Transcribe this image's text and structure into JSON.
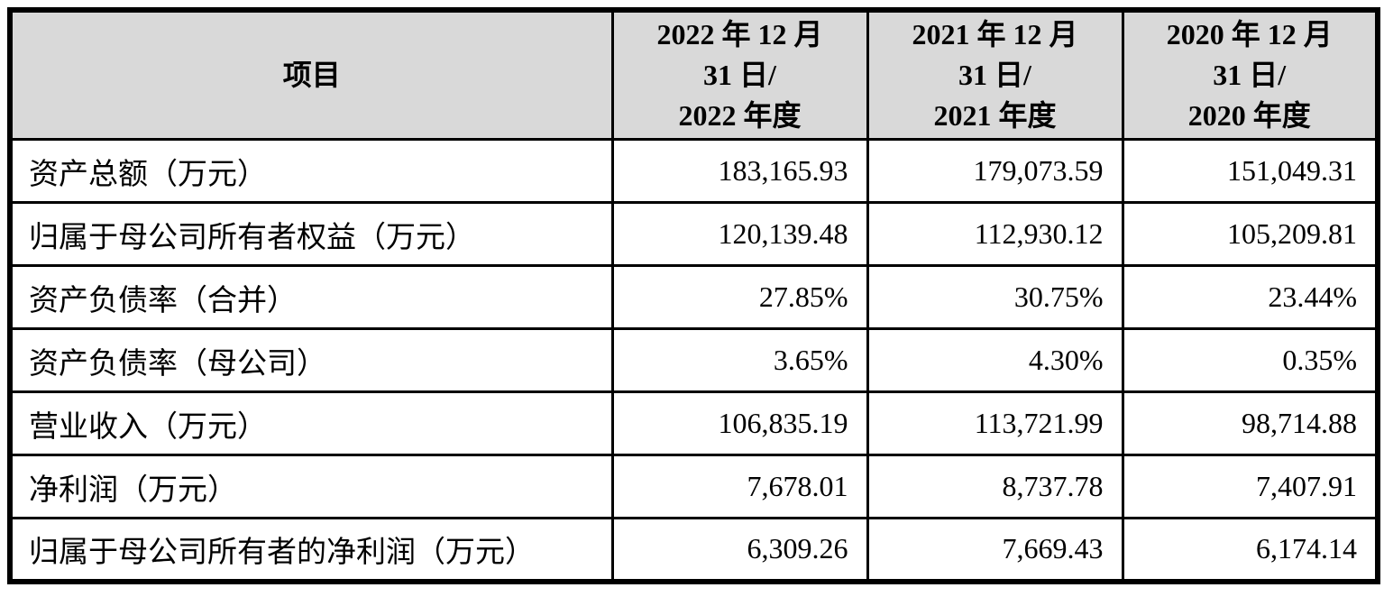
{
  "table": {
    "header": {
      "item_label": "项目",
      "periods": [
        "2022 年 12 月\n31 日/\n2022 年度",
        "2021 年 12 月\n31 日/\n2021 年度",
        "2020 年 12 月\n31 日/\n2020 年度"
      ]
    },
    "rows": [
      {
        "label": "资产总额（万元）",
        "values": [
          "183,165.93",
          "179,073.59",
          "151,049.31"
        ]
      },
      {
        "label": "归属于母公司所有者权益（万元）",
        "values": [
          "120,139.48",
          "112,930.12",
          "105,209.81"
        ]
      },
      {
        "label": "资产负债率（合并）",
        "values": [
          "27.85%",
          "30.75%",
          "23.44%"
        ]
      },
      {
        "label": "资产负债率（母公司）",
        "values": [
          "3.65%",
          "4.30%",
          "0.35%"
        ]
      },
      {
        "label": "营业收入（万元）",
        "values": [
          "106,835.19",
          "113,721.99",
          "98,714.88"
        ]
      },
      {
        "label": "净利润（万元）",
        "values": [
          "7,678.01",
          "8,737.78",
          "7,407.91"
        ]
      },
      {
        "label": "归属于母公司所有者的净利润（万元）",
        "values": [
          "6,309.26",
          "7,669.43",
          "6,174.14"
        ]
      }
    ],
    "colors": {
      "header_bg": "#d9d9d9",
      "border": "#000000",
      "text": "#000000"
    }
  }
}
